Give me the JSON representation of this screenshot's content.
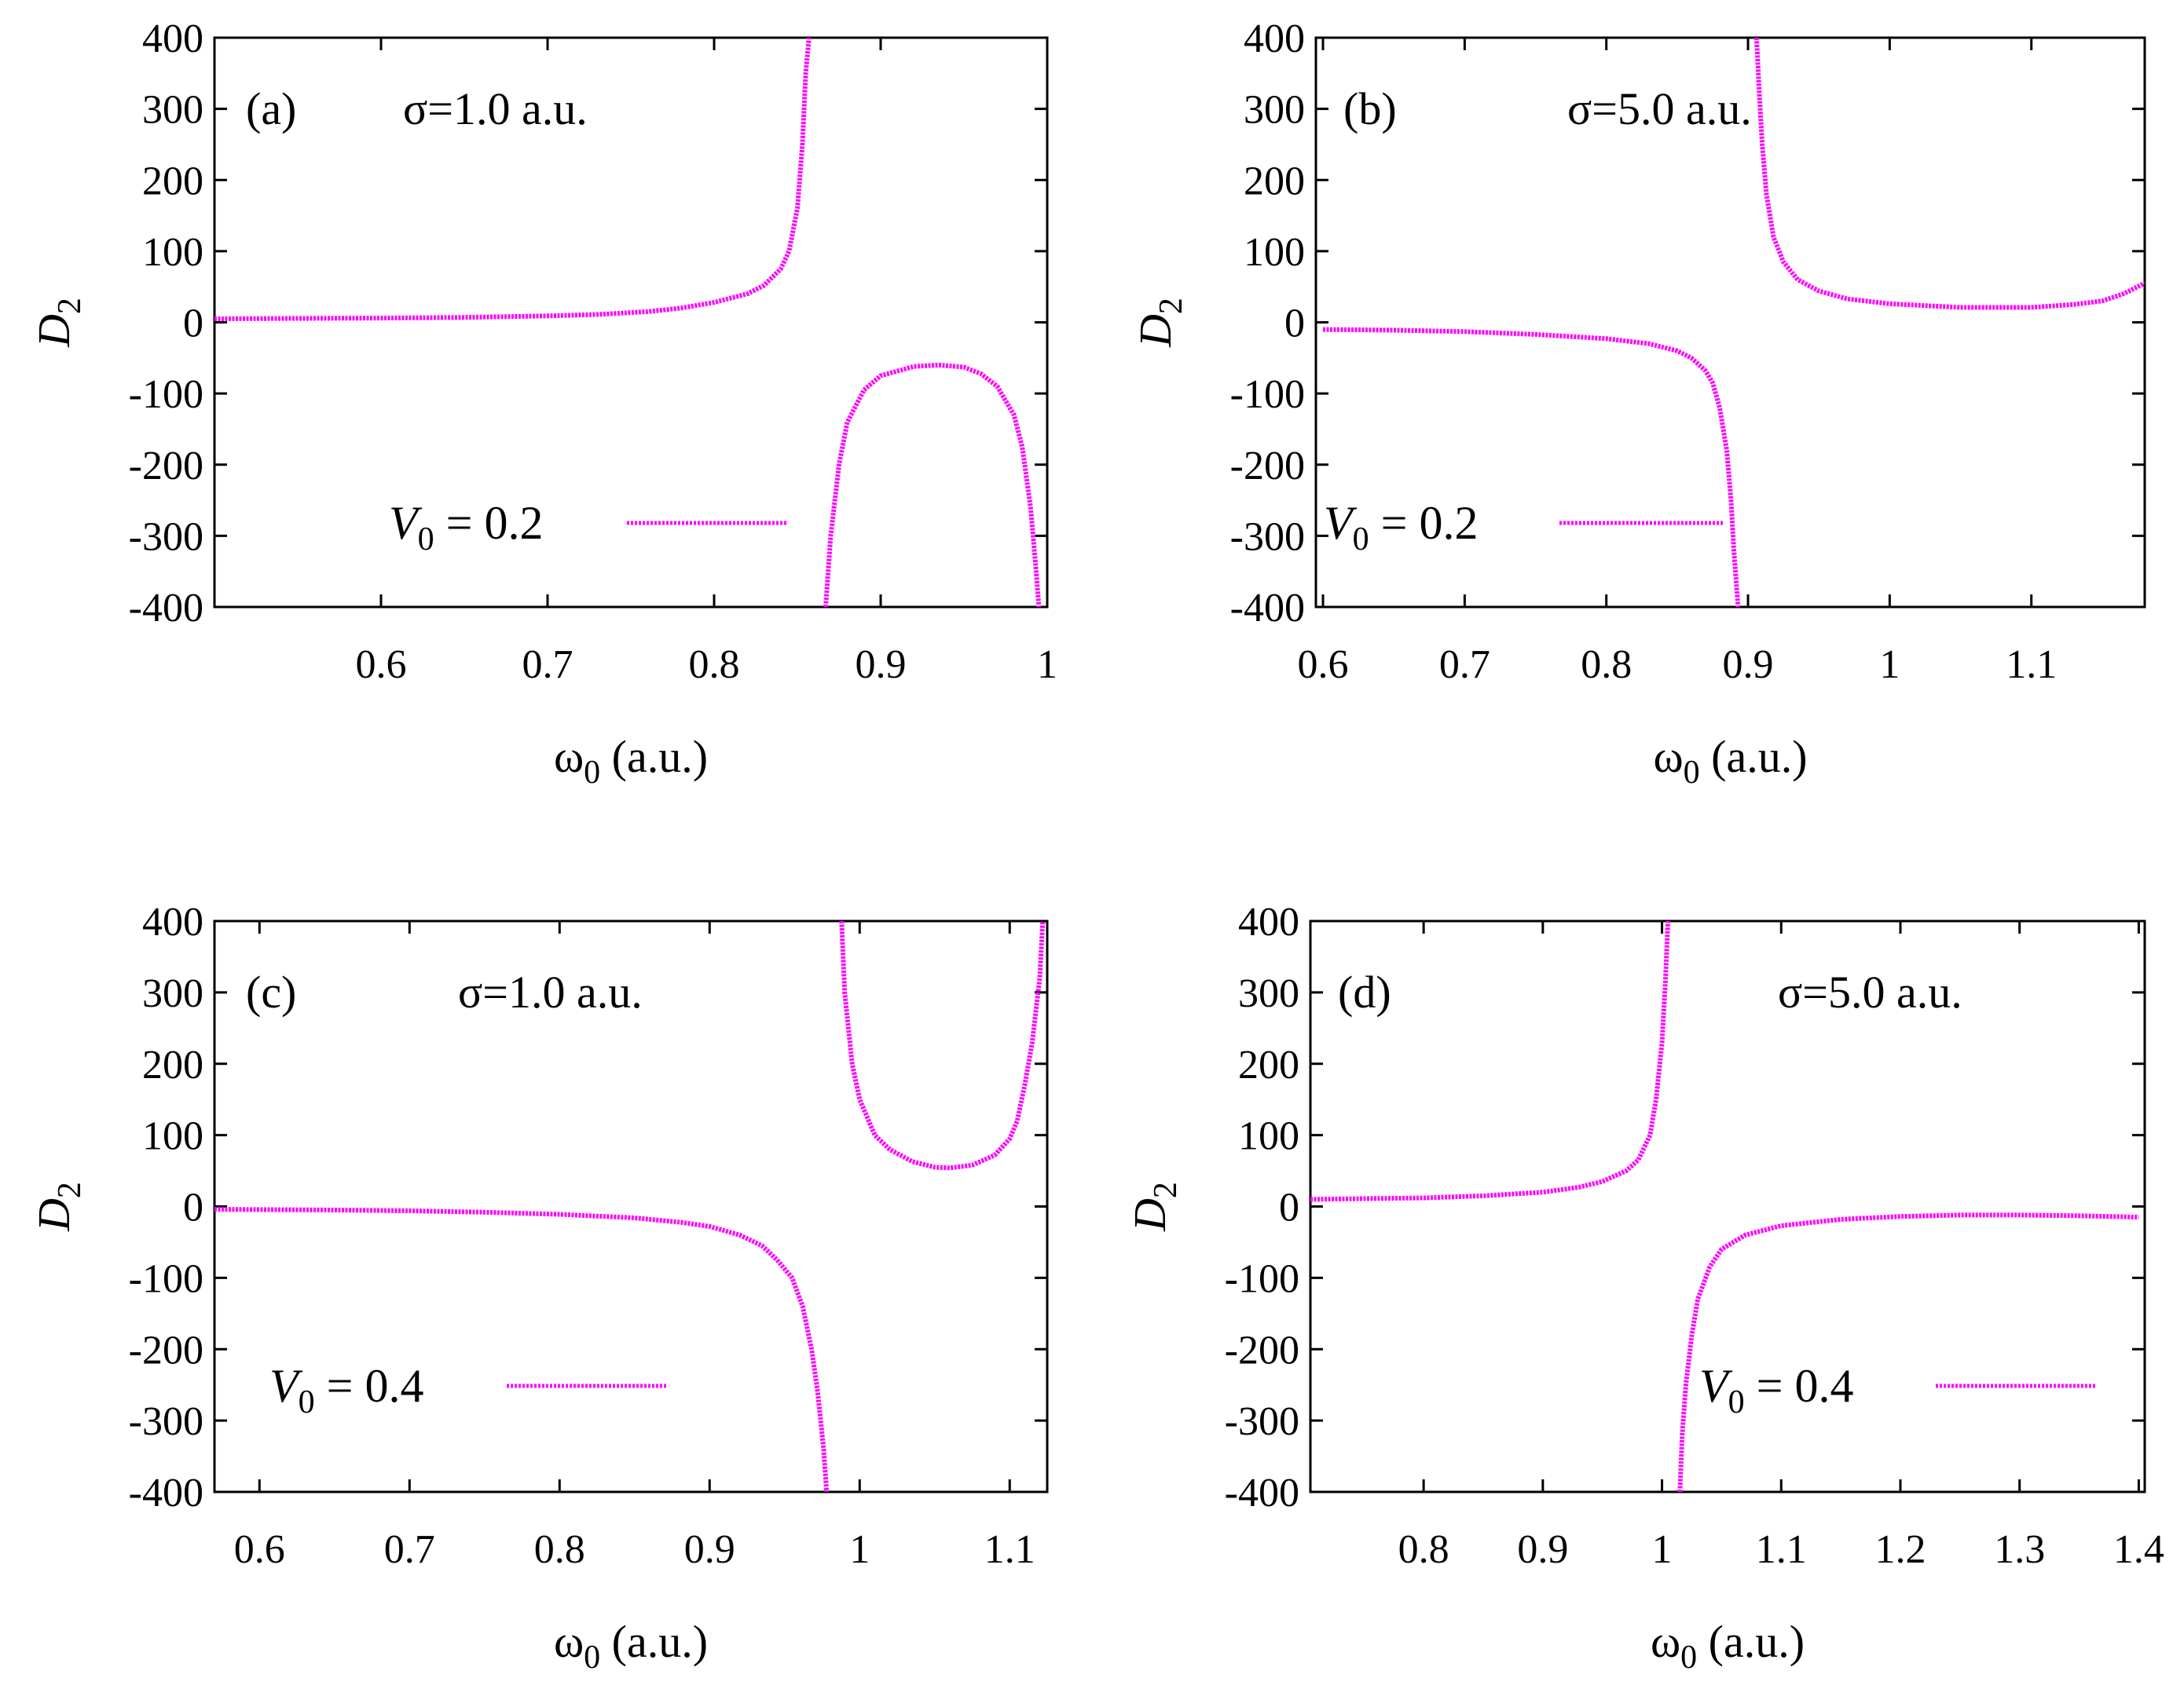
{
  "style": {
    "series_color": "#ff00ff",
    "axis_color": "#000000",
    "background": "#ffffff"
  },
  "chart_data": [
    {
      "panel": "a",
      "tag": "(a)",
      "annotation": "σ=1.0 a.u.",
      "type": "line",
      "xlabel_main": "ω",
      "xlabel_sub": "0",
      "xlabel_rest": " (a.u.)",
      "ylabel_main": "D",
      "ylabel_sub": "2",
      "xlim": [
        0.5,
        1.0
      ],
      "ylim": [
        -400,
        400
      ],
      "xticks": [
        "0.6",
        "0.7",
        "0.8",
        "0.9",
        "1"
      ],
      "yticks": [
        "400",
        "300",
        "200",
        "100",
        "0",
        "-100",
        "-200",
        "-300",
        "-400"
      ],
      "grid": false,
      "legend_position": "middle-left",
      "legend": {
        "name_main": "V",
        "name_sub": "0",
        "name_rest": " = 0.2"
      },
      "series": [
        {
          "name": "V0 = 0.2",
          "segments": [
            [
              [
                0.5,
                5
              ],
              [
                0.55,
                5.5
              ],
              [
                0.6,
                6
              ],
              [
                0.65,
                7
              ],
              [
                0.7,
                9
              ],
              [
                0.73,
                11
              ],
              [
                0.76,
                15
              ],
              [
                0.78,
                20
              ],
              [
                0.8,
                28
              ],
              [
                0.82,
                40
              ],
              [
                0.83,
                52
              ],
              [
                0.84,
                75
              ],
              [
                0.845,
                100
              ],
              [
                0.85,
                160
              ],
              [
                0.853,
                250
              ],
              [
                0.855,
                350
              ],
              [
                0.857,
                400
              ]
            ],
            [
              [
                0.867,
                -400
              ],
              [
                0.87,
                -300
              ],
              [
                0.875,
                -200
              ],
              [
                0.88,
                -140
              ],
              [
                0.89,
                -95
              ],
              [
                0.9,
                -75
              ],
              [
                0.92,
                -62
              ],
              [
                0.935,
                -60
              ],
              [
                0.95,
                -63
              ],
              [
                0.96,
                -72
              ],
              [
                0.97,
                -90
              ],
              [
                0.98,
                -130
              ],
              [
                0.985,
                -175
              ],
              [
                0.99,
                -260
              ],
              [
                0.993,
                -340
              ],
              [
                0.995,
                -400
              ]
            ]
          ]
        }
      ]
    },
    {
      "panel": "b",
      "tag": "(b)",
      "annotation": "σ=5.0 a.u.",
      "type": "line",
      "xlabel_main": "ω",
      "xlabel_sub": "0",
      "xlabel_rest": " (a.u.)",
      "ylabel_main": "D",
      "ylabel_sub": "2",
      "xlim": [
        0.595,
        1.18
      ],
      "ylim": [
        -400,
        400
      ],
      "xticks": [
        "0.6",
        "0.7",
        "0.8",
        "0.9",
        "1",
        "1.1"
      ],
      "yticks": [
        "400",
        "300",
        "200",
        "100",
        "0",
        "-100",
        "-200",
        "-300",
        "-400"
      ],
      "grid": false,
      "legend_position": "middle-left",
      "legend": {
        "name_main": "V",
        "name_sub": "0",
        "name_rest": " = 0.2"
      },
      "series": [
        {
          "name": "V0 = 0.2",
          "segments": [
            [
              [
                0.6,
                -10
              ],
              [
                0.65,
                -11
              ],
              [
                0.7,
                -13
              ],
              [
                0.75,
                -17
              ],
              [
                0.8,
                -23
              ],
              [
                0.83,
                -30
              ],
              [
                0.85,
                -40
              ],
              [
                0.86,
                -50
              ],
              [
                0.87,
                -68
              ],
              [
                0.875,
                -85
              ],
              [
                0.88,
                -120
              ],
              [
                0.885,
                -180
              ],
              [
                0.888,
                -250
              ],
              [
                0.89,
                -320
              ],
              [
                0.893,
                -400
              ]
            ],
            [
              [
                0.906,
                400
              ],
              [
                0.908,
                320
              ],
              [
                0.91,
                250
              ],
              [
                0.913,
                180
              ],
              [
                0.918,
                120
              ],
              [
                0.925,
                85
              ],
              [
                0.935,
                60
              ],
              [
                0.95,
                44
              ],
              [
                0.97,
                33
              ],
              [
                1.0,
                26
              ],
              [
                1.05,
                21
              ],
              [
                1.1,
                21
              ],
              [
                1.13,
                25
              ],
              [
                1.15,
                30
              ],
              [
                1.165,
                40
              ],
              [
                1.18,
                55
              ]
            ]
          ]
        }
      ]
    },
    {
      "panel": "c",
      "tag": "(c)",
      "annotation": "σ=1.0 a.u.",
      "type": "line",
      "xlabel_main": "ω",
      "xlabel_sub": "0",
      "xlabel_rest": " (a.u.)",
      "ylabel_main": "D",
      "ylabel_sub": "2",
      "xlim": [
        0.57,
        1.125
      ],
      "ylim": [
        -400,
        400
      ],
      "xticks": [
        "0.6",
        "0.7",
        "0.8",
        "0.9",
        "1",
        "1.1"
      ],
      "yticks": [
        "400",
        "300",
        "200",
        "100",
        "0",
        "-100",
        "-200",
        "-300",
        "-400"
      ],
      "grid": false,
      "legend_position": "bottom-left",
      "legend": {
        "name_main": "V",
        "name_sub": "0",
        "name_rest": " = 0.4"
      },
      "series": [
        {
          "name": "V0 = 0.4",
          "segments": [
            [
              [
                0.57,
                -4
              ],
              [
                0.65,
                -5
              ],
              [
                0.7,
                -6
              ],
              [
                0.75,
                -8
              ],
              [
                0.8,
                -11
              ],
              [
                0.85,
                -16
              ],
              [
                0.88,
                -22
              ],
              [
                0.9,
                -28
              ],
              [
                0.92,
                -40
              ],
              [
                0.935,
                -55
              ],
              [
                0.945,
                -75
              ],
              [
                0.955,
                -100
              ],
              [
                0.962,
                -140
              ],
              [
                0.968,
                -200
              ],
              [
                0.972,
                -260
              ],
              [
                0.976,
                -340
              ],
              [
                0.978,
                -400
              ]
            ],
            [
              [
                0.988,
                400
              ],
              [
                0.99,
                300
              ],
              [
                0.995,
                200
              ],
              [
                1.0,
                150
              ],
              [
                1.01,
                100
              ],
              [
                1.02,
                80
              ],
              [
                1.035,
                63
              ],
              [
                1.05,
                55
              ],
              [
                1.06,
                54
              ],
              [
                1.075,
                58
              ],
              [
                1.09,
                72
              ],
              [
                1.1,
                95
              ],
              [
                1.105,
                120
              ],
              [
                1.11,
                170
              ],
              [
                1.115,
                230
              ],
              [
                1.12,
                320
              ],
              [
                1.122,
                400
              ]
            ]
          ]
        }
      ]
    },
    {
      "panel": "d",
      "tag": "(d)",
      "annotation": "σ=5.0 a.u.",
      "type": "line",
      "xlabel_main": "ω",
      "xlabel_sub": "0",
      "xlabel_rest": " (a.u.)",
      "ylabel_main": "D",
      "ylabel_sub": "2",
      "xlim": [
        0.705,
        1.405
      ],
      "ylim": [
        -400,
        400
      ],
      "xticks": [
        "0.8",
        "0.9",
        "1",
        "1.1",
        "1.2",
        "1.3",
        "1.4"
      ],
      "yticks": [
        "400",
        "300",
        "200",
        "100",
        "0",
        "-100",
        "-200",
        "-300",
        "-400"
      ],
      "grid": false,
      "legend_position": "bottom-right",
      "legend": {
        "name_main": "V",
        "name_sub": "0",
        "name_rest": " = 0.4"
      },
      "series": [
        {
          "name": "V0 = 0.4",
          "segments": [
            [
              [
                0.705,
                10
              ],
              [
                0.75,
                11
              ],
              [
                0.8,
                12
              ],
              [
                0.85,
                15
              ],
              [
                0.9,
                20
              ],
              [
                0.93,
                27
              ],
              [
                0.95,
                35
              ],
              [
                0.97,
                50
              ],
              [
                0.98,
                65
              ],
              [
                0.99,
                100
              ],
              [
                0.995,
                150
              ],
              [
                1.0,
                230
              ],
              [
                1.003,
                320
              ],
              [
                1.005,
                400
              ]
            ],
            [
              [
                1.015,
                -400
              ],
              [
                1.017,
                -320
              ],
              [
                1.02,
                -250
              ],
              [
                1.025,
                -180
              ],
              [
                1.03,
                -130
              ],
              [
                1.04,
                -85
              ],
              [
                1.05,
                -60
              ],
              [
                1.07,
                -40
              ],
              [
                1.1,
                -27
              ],
              [
                1.15,
                -18
              ],
              [
                1.2,
                -14
              ],
              [
                1.25,
                -12
              ],
              [
                1.3,
                -12
              ],
              [
                1.35,
                -13
              ],
              [
                1.4,
                -15
              ]
            ]
          ]
        }
      ]
    }
  ]
}
